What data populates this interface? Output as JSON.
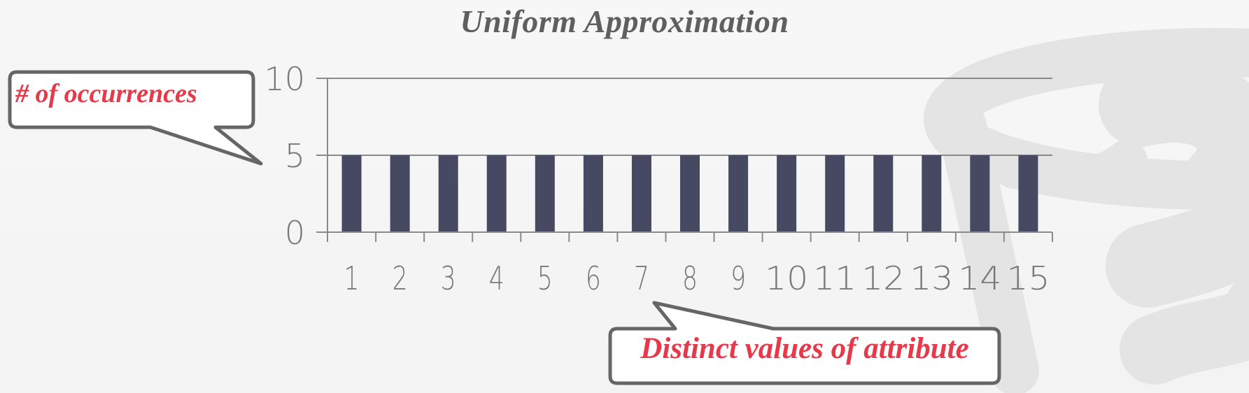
{
  "chart_data": {
    "type": "bar",
    "title": "Uniform Approximation",
    "categories": [
      "1",
      "2",
      "3",
      "4",
      "5",
      "6",
      "7",
      "8",
      "9",
      "10",
      "11",
      "12",
      "13",
      "14",
      "15"
    ],
    "values": [
      5,
      5,
      5,
      5,
      5,
      5,
      5,
      5,
      5,
      5,
      5,
      5,
      5,
      5,
      5
    ],
    "ylim": [
      0,
      10
    ],
    "yticks": [
      "0",
      "5",
      "10"
    ],
    "grid": true,
    "bar_color": "#474862",
    "xlabel": "Distinct values of attribute",
    "ylabel": "# of occurrences",
    "label_color": "#e8394a"
  }
}
